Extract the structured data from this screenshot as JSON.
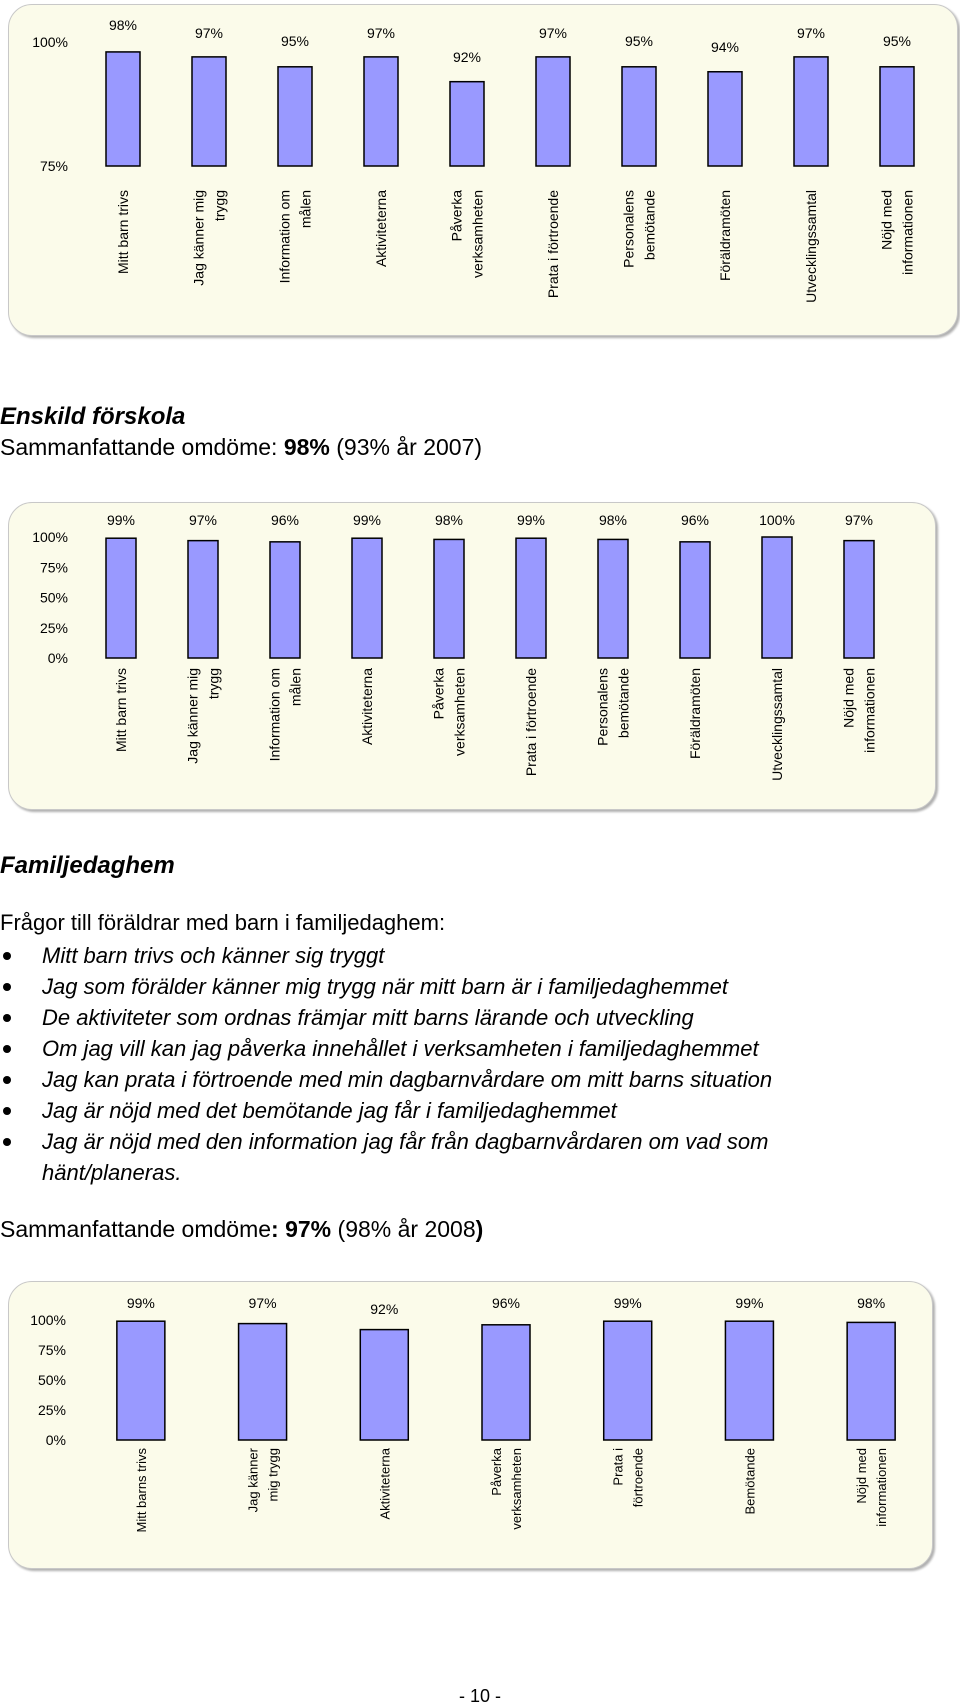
{
  "chart_data": [
    {
      "type": "bar",
      "categories": [
        [
          "Mitt barn trivs"
        ],
        [
          "Jag känner mig",
          "trygg"
        ],
        [
          "Information om",
          "målen"
        ],
        [
          "Aktiviteterna"
        ],
        [
          "Påverka",
          "verksamheten"
        ],
        [
          "Prata i förtroende"
        ],
        [
          "Personalens",
          "bemötande"
        ],
        [
          "Föräldramöten"
        ],
        [
          "Utvecklingssamtal"
        ],
        [
          "Nöjd med",
          "informationen"
        ]
      ],
      "values": [
        98,
        97,
        95,
        97,
        92,
        97,
        95,
        94,
        97,
        95
      ],
      "value_labels": [
        "98%",
        "97%",
        "95%",
        "97%",
        "92%",
        "97%",
        "95%",
        "94%",
        "97%",
        "95%"
      ],
      "ylim": [
        75,
        100
      ],
      "ytick_labels": [
        "75%",
        "100%"
      ],
      "ytick_values": [
        75,
        100
      ],
      "bar_color": "#9999ff"
    },
    {
      "type": "bar",
      "categories": [
        [
          "Mitt barn trivs"
        ],
        [
          "Jag känner mig",
          "trygg"
        ],
        [
          "Information om",
          "målen"
        ],
        [
          "Aktiviteterna"
        ],
        [
          "Påverka",
          "verksamheten"
        ],
        [
          "Prata i förtroende"
        ],
        [
          "Personalens",
          "bemötande"
        ],
        [
          "Föräldramöten"
        ],
        [
          "Utvecklingssamtal"
        ],
        [
          "Nöjd med",
          "informationen"
        ]
      ],
      "values": [
        99,
        97,
        96,
        99,
        98,
        99,
        98,
        96,
        100,
        97
      ],
      "value_labels": [
        "99%",
        "97%",
        "96%",
        "99%",
        "98%",
        "99%",
        "98%",
        "96%",
        "100%",
        "97%"
      ],
      "ylim": [
        0,
        100
      ],
      "ytick_labels": [
        "0%",
        "25%",
        "50%",
        "75%",
        "100%"
      ],
      "ytick_values": [
        0,
        25,
        50,
        75,
        100
      ],
      "bar_color": "#9999ff"
    },
    {
      "type": "bar",
      "categories": [
        [
          "Mitt barns trivs"
        ],
        [
          "Jag känner",
          "mig trygg"
        ],
        [
          "Aktiviteterna"
        ],
        [
          "Påverka",
          "verksamheten"
        ],
        [
          "Prata i",
          "förtroende"
        ],
        [
          "Bemötande"
        ],
        [
          "Nöjd med",
          "informationen"
        ]
      ],
      "values": [
        99,
        97,
        92,
        96,
        99,
        99,
        98
      ],
      "value_labels": [
        "99%",
        "97%",
        "92%",
        "96%",
        "99%",
        "99%",
        "98%"
      ],
      "ylim": [
        0,
        100
      ],
      "ytick_labels": [
        "0%",
        "25%",
        "50%",
        "75%",
        "100%"
      ],
      "ytick_values": [
        0,
        25,
        50,
        75,
        100
      ],
      "bar_color": "#9999ff"
    }
  ],
  "section1": {
    "title": "Enskild förskola",
    "summary_prefix": "Sammanfattande omdöme: ",
    "summary_value": "98%",
    "summary_suffix": "  (93% år 2007)"
  },
  "section2": {
    "title": "Familjedaghem",
    "intro": "Frågor till föräldrar med barn i familjedaghem:",
    "questions": [
      "Mitt barn trivs och känner sig tryggt",
      "Jag som förälder känner mig trygg när mitt barn är i familjedaghemmet",
      "De aktiviteter som ordnas främjar mitt barns lärande och utveckling",
      "Om jag vill kan jag påverka innehållet i verksamheten i familjedaghemmet",
      "Jag kan prata i förtroende med min dagbarnvårdare om mitt barns situation",
      "Jag är nöjd med det bemötande jag får i familjedaghemmet",
      "Jag är nöjd med den information jag får från dagbarnvårdaren om vad som hänt/planeras."
    ],
    "summary_prefix": "Sammanfattande omdöme",
    "summary_value": ": 97%",
    "summary_suffix": "  (98% år 2008",
    "summary_close": ")"
  },
  "footer": {
    "page_number": "- 10 -"
  }
}
